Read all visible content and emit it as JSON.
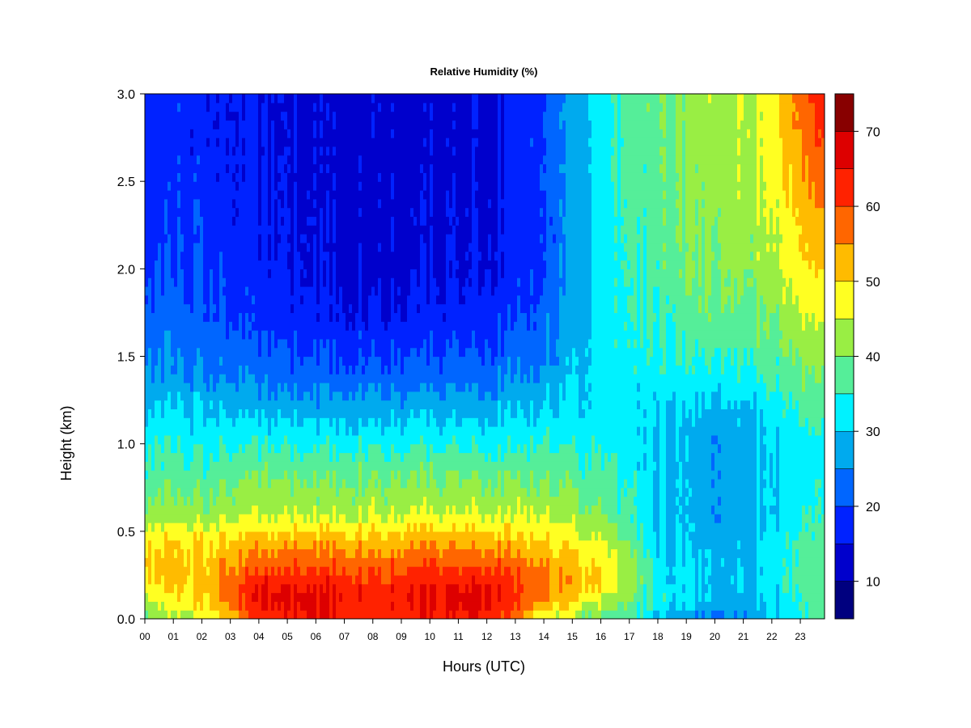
{
  "chart_data": {
    "type": "heatmap",
    "title": "Relative Humidity (%)",
    "xlabel": "Hours (UTC)",
    "ylabel": "Height (km)",
    "xlim": [
      0,
      23.85
    ],
    "ylim": [
      0,
      3.0
    ],
    "x_tick_labels": [
      "00",
      "01",
      "02",
      "03",
      "04",
      "05",
      "06",
      "07",
      "08",
      "09",
      "10",
      "11",
      "12",
      "13",
      "14",
      "15",
      "16",
      "17",
      "18",
      "19",
      "20",
      "21",
      "22",
      "23"
    ],
    "y_tick_labels": [
      "0.0",
      "0.5",
      "1.0",
      "1.5",
      "2.0",
      "2.5",
      "3.0"
    ],
    "y_ticks": [
      0,
      0.5,
      1.0,
      1.5,
      2.0,
      2.5,
      3.0
    ],
    "colorbar": {
      "levels": [
        5,
        10,
        15,
        20,
        25,
        30,
        35,
        40,
        45,
        50,
        55,
        60,
        65,
        70,
        75
      ],
      "colors": [
        "#00007f",
        "#0000cc",
        "#0022ff",
        "#0066ff",
        "#00aaee",
        "#00f2ff",
        "#55ee99",
        "#99ee44",
        "#ffff22",
        "#ffbb00",
        "#ff6600",
        "#ff2200",
        "#dd0000",
        "#880000"
      ],
      "tick_labels": [
        "10",
        "20",
        "30",
        "40",
        "50",
        "60",
        "70"
      ],
      "ticks": [
        10,
        20,
        30,
        40,
        50,
        60,
        70
      ]
    },
    "grid": {
      "hours": [
        0,
        2,
        4,
        6,
        8,
        10,
        12,
        14,
        16,
        18,
        20,
        22,
        23.8
      ],
      "heights": [
        0.0,
        0.1,
        0.2,
        0.3,
        0.45,
        0.6,
        0.8,
        1.0,
        1.2,
        1.4,
        1.7,
        2.0,
        2.5,
        3.0
      ],
      "values": [
        [
          40,
          45,
          60,
          65,
          62,
          63,
          65,
          45,
          38,
          30,
          22,
          30,
          38
        ],
        [
          44,
          50,
          65,
          67,
          63,
          66,
          67,
          55,
          45,
          33,
          28,
          30,
          38
        ],
        [
          50,
          52,
          64,
          65,
          62,
          64,
          65,
          57,
          50,
          33,
          28,
          32,
          40
        ],
        [
          52,
          52,
          58,
          60,
          58,
          60,
          60,
          56,
          50,
          32,
          28,
          32,
          40
        ],
        [
          50,
          50,
          52,
          54,
          52,
          54,
          53,
          50,
          45,
          31,
          27,
          32,
          38
        ],
        [
          42,
          42,
          44,
          44,
          44,
          45,
          45,
          45,
          40,
          30,
          26,
          30,
          36
        ],
        [
          38,
          38,
          40,
          40,
          40,
          40,
          40,
          40,
          37,
          30,
          26,
          30,
          35
        ],
        [
          35,
          34,
          34,
          34,
          34,
          34,
          34,
          35,
          34,
          30,
          26,
          30,
          34
        ],
        [
          30,
          30,
          28,
          28,
          28,
          28,
          28,
          30,
          32,
          31,
          28,
          32,
          38
        ],
        [
          27,
          25,
          23,
          22,
          22,
          22,
          23,
          26,
          32,
          33,
          33,
          36,
          42
        ],
        [
          23,
          22,
          18,
          17,
          16,
          17,
          18,
          22,
          32,
          36,
          38,
          40,
          46
        ],
        [
          20,
          20,
          16,
          15,
          13,
          14,
          15,
          20,
          32,
          37,
          40,
          43,
          52
        ],
        [
          18,
          18,
          15,
          14,
          13,
          13,
          14,
          20,
          33,
          38,
          42,
          46,
          58
        ],
        [
          18,
          17,
          15,
          14,
          13,
          13,
          14,
          20,
          33,
          39,
          43,
          48,
          65
        ]
      ]
    }
  }
}
